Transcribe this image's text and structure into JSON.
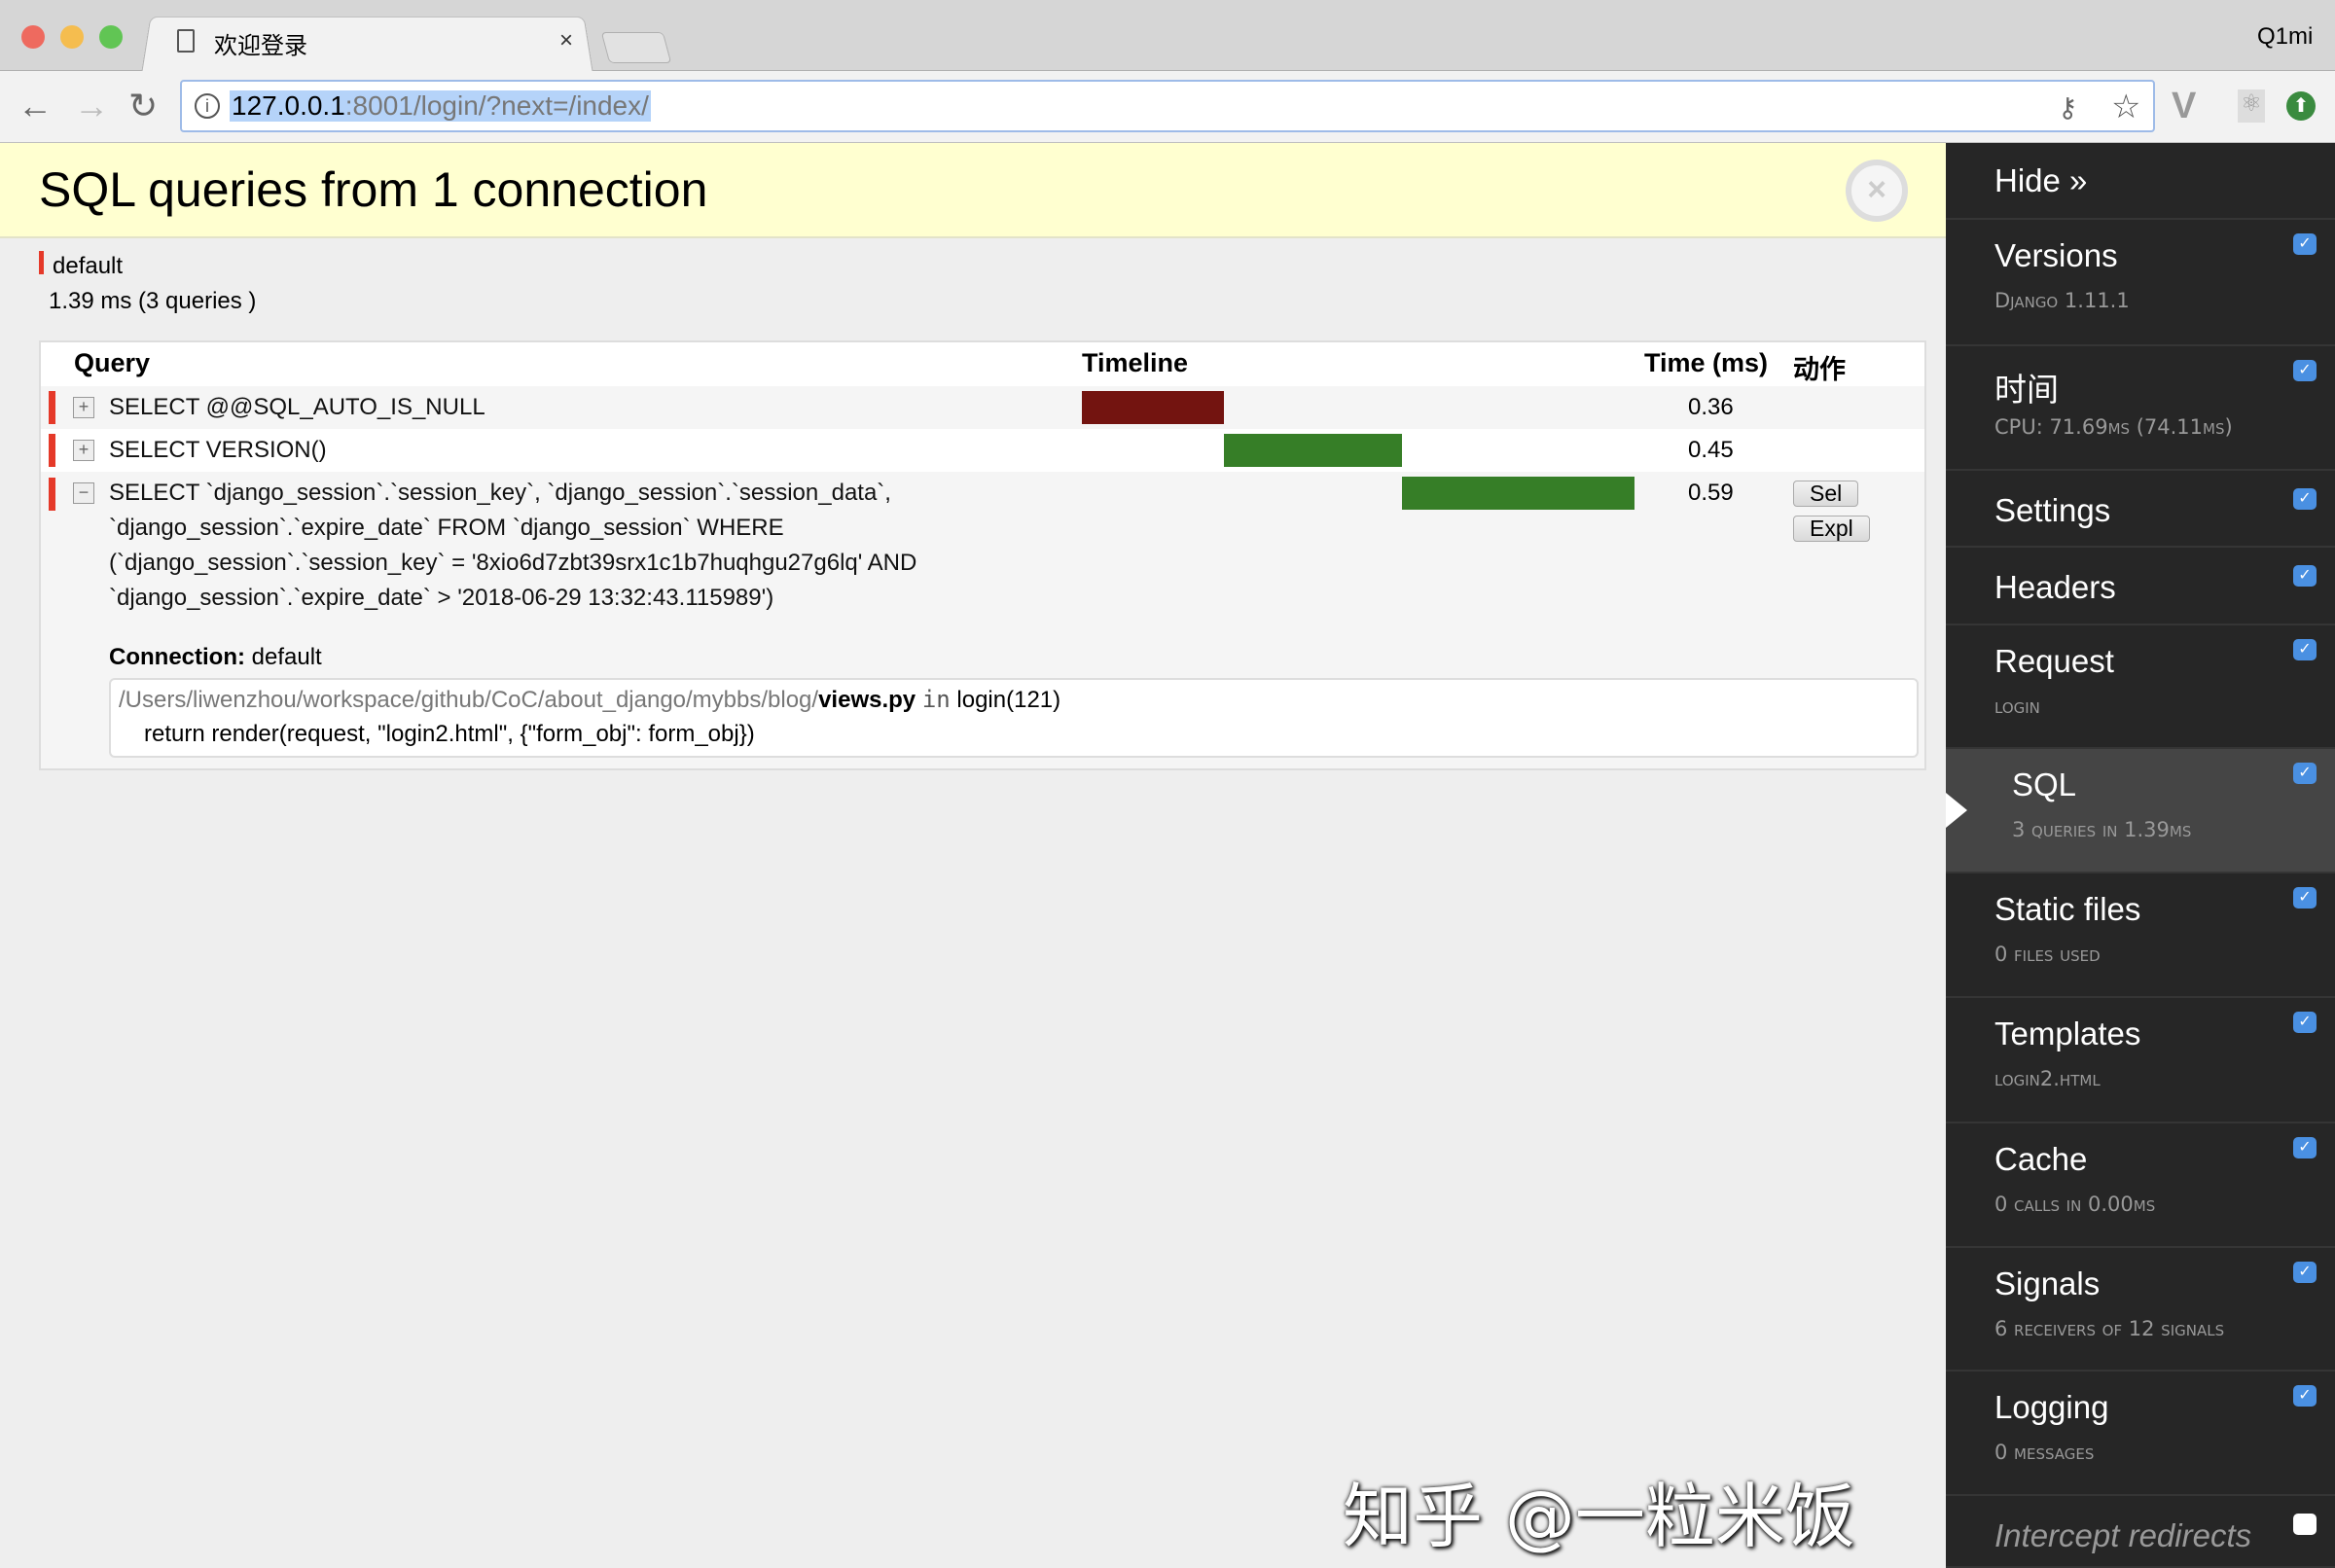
{
  "browser": {
    "tab_title": "欢迎登录",
    "tab_close": "×",
    "profile": "Q1mi",
    "url_host": "127.0.0.1",
    "url_rest": ":8001/login/?next=/index/",
    "colors": {
      "close": "#ee6a5f",
      "minimize": "#f5bd4f",
      "maximize": "#61c554"
    }
  },
  "panel": {
    "title": "SQL queries from 1 connection",
    "close_icon": "×",
    "connection_name": "default",
    "connection_stats": "1.39 ms (3 queries )",
    "columns": {
      "query": "Query",
      "timeline": "Timeline",
      "time": "Time (ms)",
      "actions": "动作"
    },
    "queries": [
      {
        "toggle": "+",
        "sql": "SELECT @@SQL_AUTO_IS_NULL",
        "time": "0.36",
        "timeline_start": 0,
        "timeline_duration": 0.36,
        "bar_color": "#731410"
      },
      {
        "toggle": "+",
        "sql": "SELECT VERSION()",
        "time": "0.45",
        "timeline_start": 0.36,
        "timeline_duration": 0.45,
        "bar_color": "#367e27"
      },
      {
        "toggle": "−",
        "sql_lines": [
          "SELECT `django_session`.`session_key`, `django_session`.`session_data`,",
          "`django_session`.`expire_date` FROM `django_session` WHERE",
          "(`django_session`.`session_key` = '8xio6d7zbt39srx1c1b7huqhgu27g6lq' AND",
          "`django_session`.`expire_date` > '2018-06-29 13:32:43.115989')"
        ],
        "time": "0.59",
        "timeline_start": 0.81,
        "timeline_duration": 0.59,
        "bar_color": "#367e27",
        "buttons": {
          "select": "Sel",
          "explain": "Expl"
        },
        "connection_label": "Connection:",
        "connection_value": "default",
        "stack_path": "/Users/liwenzhou/workspace/github/CoC/about_django/mybbs/blog/",
        "stack_file": "views.py",
        "stack_in": "in",
        "stack_func": "login(121)",
        "stack_code": "return render(request, \"login2.html\", {\"form_obj\": form_obj})"
      }
    ]
  },
  "sidebar": {
    "hide": "Hide »",
    "items": [
      {
        "title": "Versions",
        "sub": "Django 1.11.1",
        "checked": true
      },
      {
        "title": "时间",
        "sub": "CPU: 71.69ms (74.11ms)",
        "checked": true
      },
      {
        "title": "Settings",
        "sub": "",
        "checked": true
      },
      {
        "title": "Headers",
        "sub": "",
        "checked": true
      },
      {
        "title": "Request",
        "sub": "login",
        "checked": true
      },
      {
        "title": "SQL",
        "sub": "3 queries in 1.39ms",
        "checked": true,
        "active": true
      },
      {
        "title": "Static files",
        "sub": "0 files used",
        "checked": true
      },
      {
        "title": "Templates",
        "sub": "login2.html",
        "checked": true
      },
      {
        "title": "Cache",
        "sub": "0 calls in 0.00ms",
        "checked": true
      },
      {
        "title": "Signals",
        "sub": "6 receivers of 12 signals",
        "checked": true
      },
      {
        "title": "Logging",
        "sub": "0 messages",
        "checked": true
      },
      {
        "title": "Intercept redirects",
        "sub": "",
        "checked": false
      }
    ]
  },
  "watermark": "知乎 @一粒米饭"
}
